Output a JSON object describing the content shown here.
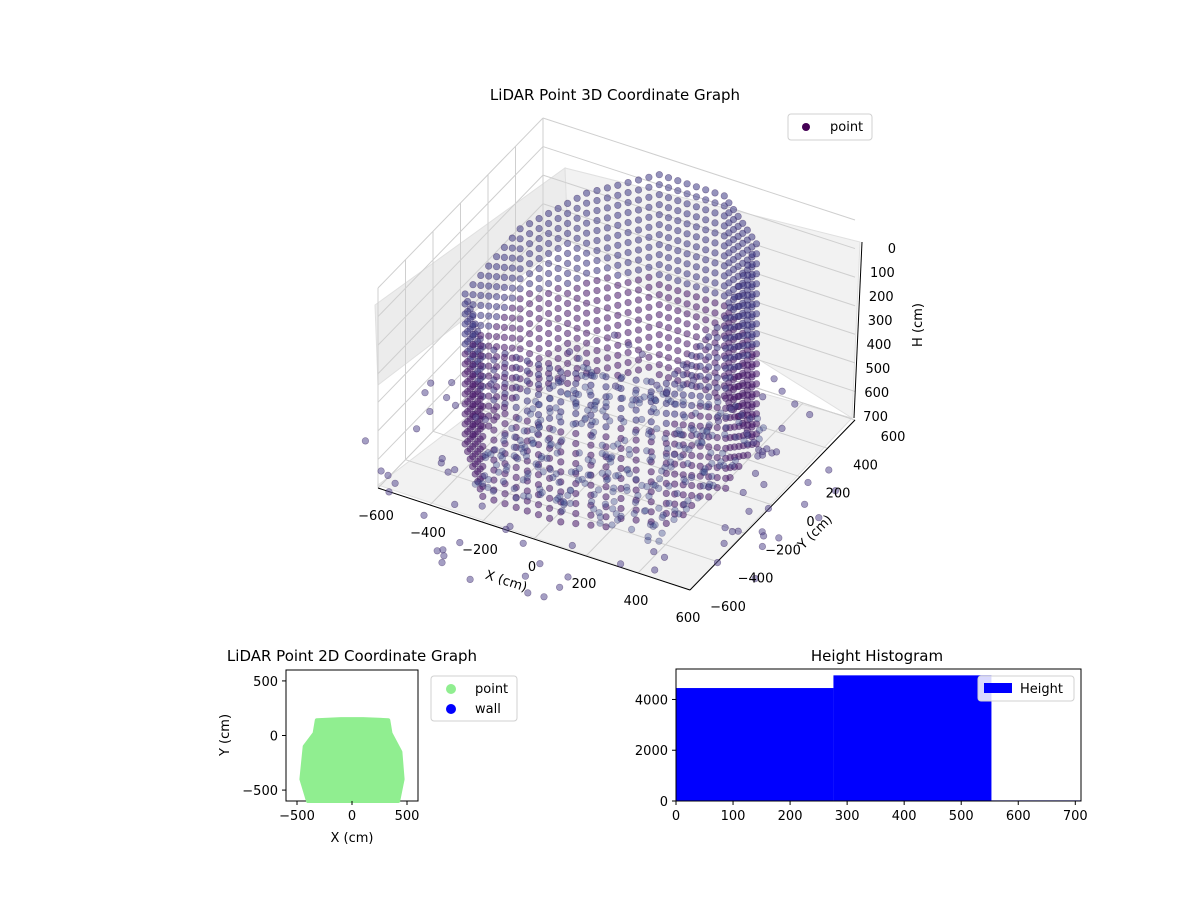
{
  "chart_data": [
    {
      "type": "scatter",
      "projection": "3d",
      "title": "LiDAR Point 3D Coordinate Graph",
      "xlabel": "X (cm)",
      "ylabel": "Y (cm)",
      "zlabel": "H (cm)",
      "x_ticks": [
        "−600",
        "−400",
        "−200",
        "0",
        "200",
        "400",
        "600"
      ],
      "y_ticks": [
        "−600",
        "−400",
        "−200",
        "0",
        "200",
        "400",
        "600"
      ],
      "z_ticks": [
        "0",
        "100",
        "200",
        "300",
        "400",
        "500",
        "600",
        "700"
      ],
      "xlim": [
        -600,
        600
      ],
      "ylim": [
        -600,
        600
      ],
      "zlim": [
        0,
        700
      ],
      "z_inverted": true,
      "grid": true,
      "legend": {
        "position": "top-right",
        "entries": [
          "point"
        ]
      },
      "series": [
        {
          "name": "point",
          "color": "#440154",
          "description_of_shape": "room outline: walls as vertical columns of points from floor to ceiling, dense floor cluster, sparse outliers outside"
        }
      ],
      "sample_points": [
        {
          "x": -450,
          "y": 150,
          "h_range": [
            120,
            700
          ]
        },
        {
          "x": -300,
          "y": 350,
          "h_range": [
            50,
            700
          ]
        },
        {
          "x": -100,
          "y": 500,
          "h_range": [
            0,
            700
          ]
        },
        {
          "x": 150,
          "y": 500,
          "h_range": [
            0,
            700
          ]
        },
        {
          "x": 380,
          "y": 300,
          "h_range": [
            0,
            700
          ]
        },
        {
          "x": 420,
          "y": 0,
          "h_range": [
            100,
            700
          ]
        },
        {
          "x": 350,
          "y": -300,
          "h_range": [
            200,
            700
          ]
        },
        {
          "x": 50,
          "y": -500,
          "h_range": [
            150,
            700
          ]
        },
        {
          "x": -250,
          "y": -500,
          "h_range": [
            150,
            700
          ]
        },
        {
          "x": -450,
          "y": -250,
          "h_range": [
            150,
            700
          ]
        }
      ]
    },
    {
      "type": "scatter",
      "title": "LiDAR Point 2D Coordinate Graph",
      "xlabel": "X (cm)",
      "ylabel": "Y (cm)",
      "x_ticks": [
        -500,
        0,
        500
      ],
      "y_ticks": [
        -500,
        0,
        500
      ],
      "xlim": [
        -600,
        600
      ],
      "ylim": [
        -600,
        600
      ],
      "legend": {
        "position": "outside-right",
        "entries": [
          "point",
          "wall"
        ]
      },
      "series": [
        {
          "name": "point",
          "color": "#90EE90",
          "region_outline": [
            [
              -400,
              -600
            ],
            [
              -460,
              -400
            ],
            [
              -430,
              -100
            ],
            [
              -340,
              20
            ],
            [
              -320,
              140
            ],
            [
              -100,
              150
            ],
            [
              100,
              150
            ],
            [
              330,
              140
            ],
            [
              350,
              20
            ],
            [
              440,
              -150
            ],
            [
              460,
              -400
            ],
            [
              420,
              -600
            ]
          ]
        },
        {
          "name": "wall",
          "color": "#0000FF",
          "points": []
        }
      ]
    },
    {
      "type": "bar",
      "title": "Height Histogram",
      "xlabel": "",
      "ylabel": "",
      "x_ticks": [
        0,
        100,
        200,
        300,
        400,
        500,
        600,
        700
      ],
      "y_ticks": [
        0,
        2000,
        4000
      ],
      "xlim": [
        0,
        710
      ],
      "ylim": [
        0,
        5200
      ],
      "legend": {
        "position": "top-right",
        "entries": [
          "Height"
        ]
      },
      "series": [
        {
          "name": "Height",
          "color": "#0000FF",
          "bins": [
            {
              "x0": 0,
              "x1": 276,
              "value": 4450
            },
            {
              "x0": 276,
              "x1": 553,
              "value": 4950
            },
            {
              "x0": 553,
              "x1": 710,
              "value": 25
            }
          ]
        }
      ]
    }
  ]
}
